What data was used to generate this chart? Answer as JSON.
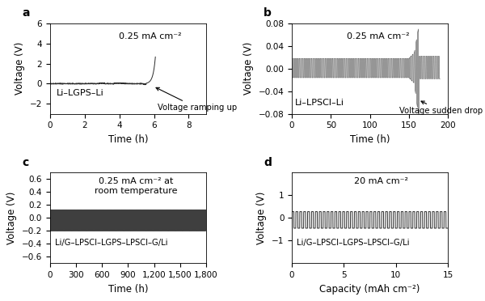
{
  "fig_width": 6.0,
  "fig_height": 3.72,
  "dpi": 100,
  "panel_a": {
    "label": "a",
    "annotation": "0.25 mA cm⁻²",
    "cell_label": "Li–LGPS–Li",
    "arrow_label": "Voltage ramping up",
    "xlabel": "Time (h)",
    "ylabel": "Voltage (V)",
    "xlim": [
      0,
      9
    ],
    "ylim": [
      -3,
      6
    ],
    "xticks": [
      0,
      2,
      4,
      6,
      8
    ],
    "yticks": [
      -2,
      0,
      2,
      4,
      6
    ]
  },
  "panel_b": {
    "label": "b",
    "annotation": "0.25 mA cm⁻²",
    "cell_label": "Li–LPSCl–Li",
    "arrow_label": "Voltage sudden drop",
    "xlabel": "Time (h)",
    "ylabel": "Voltage (V)",
    "xlim": [
      0,
      200
    ],
    "ylim": [
      -0.08,
      0.08
    ],
    "xticks": [
      0,
      50,
      100,
      150,
      200
    ],
    "yticks": [
      -0.08,
      -0.04,
      0,
      0.04,
      0.08
    ]
  },
  "panel_c": {
    "label": "c",
    "annotation": "0.25 mA cm⁻² at\nroom temperature",
    "cell_label": "Li/G–LPSCl–LGPS–LPSCl–G/Li",
    "xlabel": "Time (h)",
    "ylabel": "Voltage (V)",
    "xlim": [
      0,
      1800
    ],
    "ylim": [
      -0.7,
      0.7
    ],
    "xticks": [
      0,
      300,
      600,
      900,
      1200,
      1500,
      1800
    ],
    "yticks": [
      -0.6,
      -0.4,
      -0.2,
      0,
      0.2,
      0.4,
      0.6
    ]
  },
  "panel_d": {
    "label": "d",
    "annotation": "20 mA cm⁻²",
    "cell_label": "Li/G–LPSCl–LGPS–LPSCl–G/Li",
    "xlabel": "Capacity (mAh cm⁻²)",
    "ylabel": "Voltage (V)",
    "xlim": [
      0,
      15
    ],
    "ylim": [
      -2,
      2
    ],
    "xticks": [
      0,
      5,
      10,
      15
    ],
    "yticks": [
      -1,
      0,
      1
    ]
  },
  "line_color": "#2a2a2a",
  "bg_color": "#ffffff",
  "label_fontsize": 8.5,
  "tick_fontsize": 7.5,
  "annot_fontsize": 8.0
}
